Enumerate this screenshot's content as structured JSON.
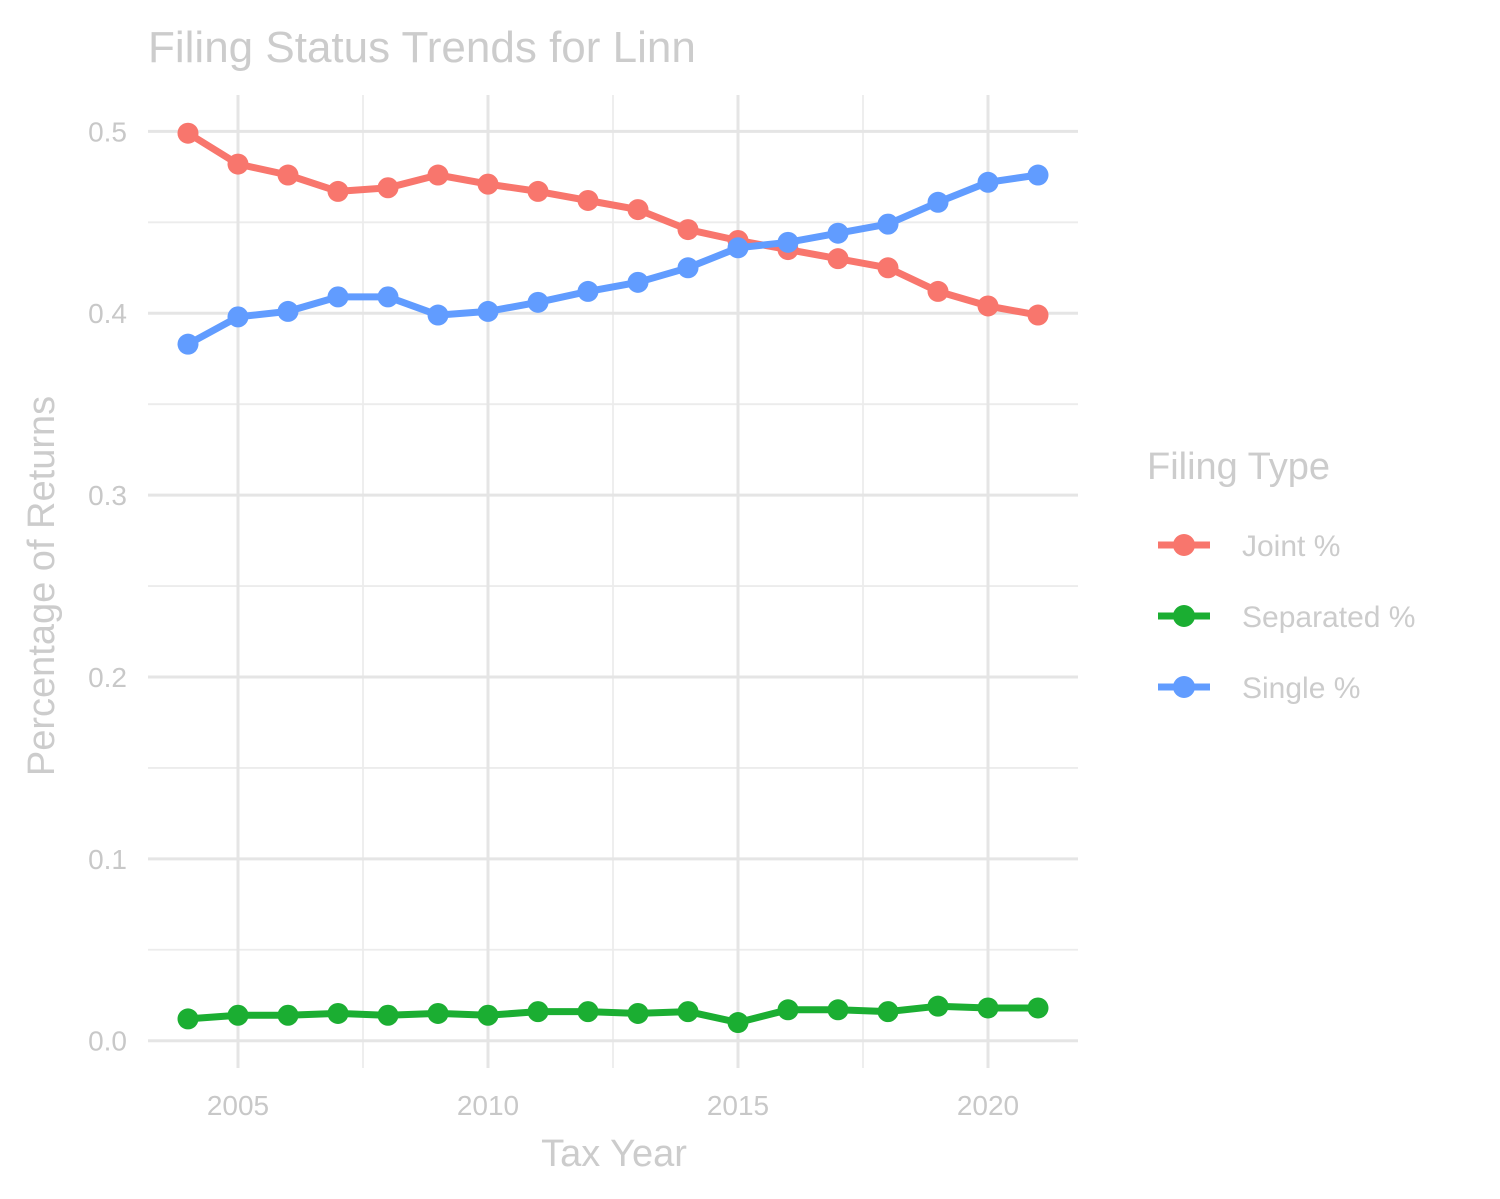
{
  "chart_data": {
    "type": "line",
    "title": "Filing Status Trends for Linn",
    "xlabel": "Tax Year",
    "ylabel": "Percentage of Returns",
    "x": [
      2004,
      2005,
      2006,
      2007,
      2008,
      2009,
      2010,
      2011,
      2012,
      2013,
      2014,
      2015,
      2016,
      2017,
      2018,
      2019,
      2020,
      2021
    ],
    "xlim": [
      2003.2,
      2021.8
    ],
    "ylim": [
      -0.015,
      0.52
    ],
    "x_ticks": [
      2005,
      2010,
      2015,
      2020
    ],
    "x_tick_labels": [
      "2005",
      "2010",
      "2015",
      "2020"
    ],
    "y_ticks": [
      0.0,
      0.1,
      0.2,
      0.3,
      0.4,
      0.5
    ],
    "y_tick_labels": [
      "0.0",
      "0.1",
      "0.2",
      "0.3",
      "0.4",
      "0.5"
    ],
    "grid": true,
    "legend": {
      "title": "Filing Type",
      "placement": "right"
    },
    "series": [
      {
        "name": "Joint %",
        "color": "#F8766D",
        "values": [
          0.499,
          0.482,
          0.476,
          0.467,
          0.469,
          0.476,
          0.471,
          0.467,
          0.462,
          0.457,
          0.446,
          0.44,
          0.435,
          0.43,
          0.425,
          0.412,
          0.404,
          0.399
        ]
      },
      {
        "name": "Separated %",
        "color": "#1BAE32",
        "values": [
          0.012,
          0.014,
          0.014,
          0.015,
          0.014,
          0.015,
          0.014,
          0.016,
          0.016,
          0.015,
          0.016,
          0.01,
          0.017,
          0.017,
          0.016,
          0.019,
          0.018,
          0.018
        ]
      },
      {
        "name": "Single %",
        "color": "#619CFF",
        "values": [
          0.383,
          0.398,
          0.401,
          0.409,
          0.409,
          0.399,
          0.401,
          0.406,
          0.412,
          0.417,
          0.425,
          0.436,
          0.439,
          0.444,
          0.449,
          0.461,
          0.472,
          0.476
        ]
      }
    ]
  }
}
